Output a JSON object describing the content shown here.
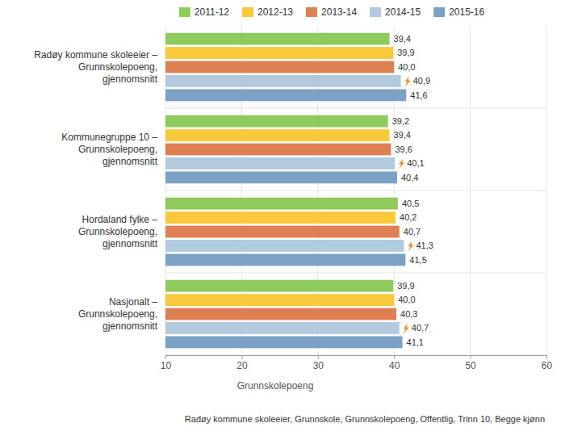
{
  "chart_data": {
    "type": "bar",
    "orientation": "horizontal",
    "categories": [
      "Radøy kommune skoleeier – Grunnskolepoeng, gjennomsnitt",
      "Kommunegruppe 10 – Grunnskolepoeng, gjennomsnitt",
      "Hordaland fylke – Grunnskolepoeng, gjennomsnitt",
      "Nasjonalt – Grunnskolepoeng, gjennomsnitt"
    ],
    "series": [
      {
        "name": "2011-12",
        "color": "#8fca5e",
        "values": [
          39.4,
          39.2,
          40.5,
          39.9
        ],
        "value_labels": [
          "39,4",
          "39,2",
          "40,5",
          "39,9"
        ]
      },
      {
        "name": "2012-13",
        "color": "#f9c93b",
        "values": [
          39.9,
          39.4,
          40.2,
          40.0
        ],
        "value_labels": [
          "39,9",
          "39,4",
          "40,2",
          "40,0"
        ]
      },
      {
        "name": "2013-14",
        "color": "#df7f54",
        "values": [
          40.0,
          39.6,
          40.7,
          40.3
        ],
        "value_labels": [
          "40,0",
          "39,6",
          "40,7",
          "40,3"
        ]
      },
      {
        "name": "2014-15",
        "color": "#b3cade",
        "values": [
          40.9,
          40.1,
          41.3,
          40.7
        ],
        "value_labels": [
          "40,9",
          "40,1",
          "41,3",
          "40,7"
        ]
      },
      {
        "name": "2015-16",
        "color": "#7da1c4",
        "values": [
          41.6,
          40.4,
          41.5,
          41.1
        ],
        "value_labels": [
          "41,6",
          "40,4",
          "41,5",
          "41,1"
        ]
      }
    ],
    "xlim": [
      10,
      60
    ],
    "xticks": [
      10,
      20,
      30,
      40,
      50,
      60
    ],
    "x_label": "Grunnskolepoeng",
    "footnote": "Radøy kommune skoleeier, Grunnskole, Grunnskolepoeng, Offentlig, Trinn 10, Begge kjønn",
    "legend": "top",
    "grid": true,
    "data_labels": true
  }
}
